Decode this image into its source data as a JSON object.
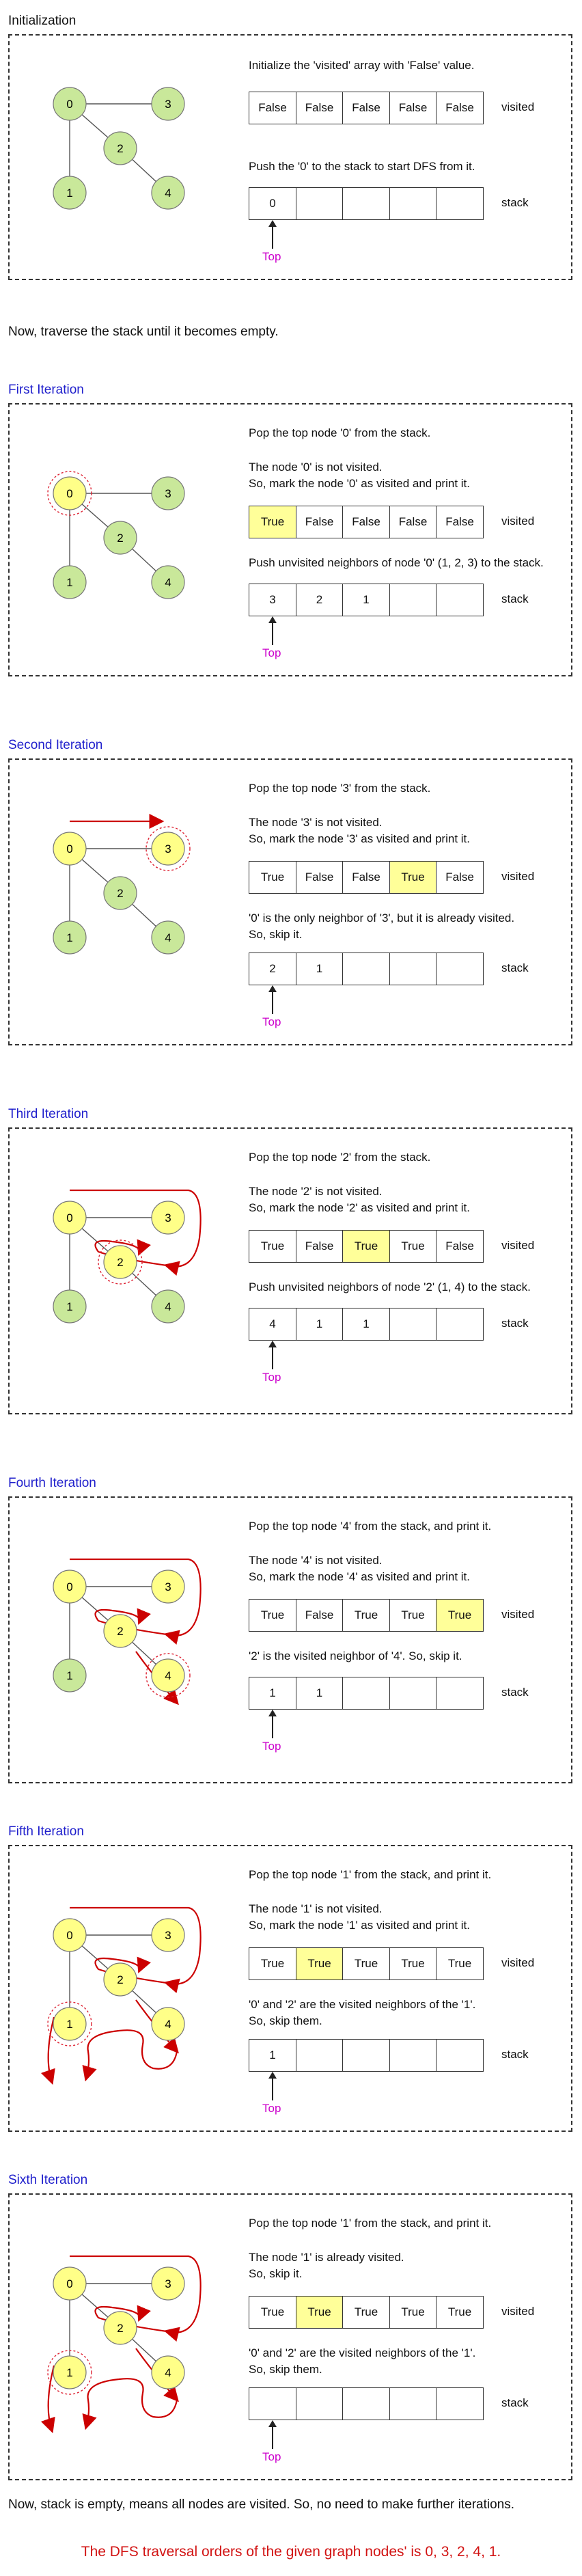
{
  "colors": {
    "unvisited": "#c9e89a",
    "visited": "#ffff88",
    "highlight": "#ffff99",
    "arrow": "#cc0000",
    "top": "#cc00cc",
    "title": "#1f1fcc",
    "final": "#d21414"
  },
  "sections": [
    {
      "title": "Initialization",
      "blue": false,
      "line1": "Initialize the 'visited' array with 'False' value.",
      "line2": "Push the '0' to the stack to start DFS from it."
    },
    {
      "title": "First Iteration",
      "blue": true,
      "line1": "Pop the top node '0' from the stack.",
      "line2": "The node '0' is not visited.\nSo, mark the node '0' as visited and print it.",
      "line3": "Push unvisited neighbors of node '0' (1, 2, 3) to the stack."
    },
    {
      "title": "Second Iteration",
      "blue": true,
      "line1": "Pop the top node '3' from the stack.",
      "line2": "The node '3' is not visited.\nSo, mark the node '3' as visited and print it.",
      "line3": "'0' is the only neighbor of '3', but it is already visited.\nSo, skip it."
    },
    {
      "title": "Third Iteration",
      "blue": true,
      "line1": "Pop the top node '2' from the stack.",
      "line2": "The node '2' is not visited.\nSo, mark the node '2' as visited and print it.",
      "line3": "Push unvisited neighbors of node '2' (1, 4) to the stack."
    },
    {
      "title": "Fourth Iteration",
      "blue": true,
      "line1": "Pop the top node '4' from the stack, and print it.",
      "line2": "The node '4' is not visited.\nSo, mark the node '4' as visited and print it.",
      "line3": "'2' is the visited neighbor of '4'. So, skip it."
    },
    {
      "title": "Fifth Iteration",
      "blue": true,
      "line1": "Pop the top node '1' from the stack, and print it.",
      "line2": "The node '1' is not visited.\nSo, mark the node '1' as visited and print it.",
      "line3": "'0' and '2' are the visited neighbors of the '1'.\nSo, skip them."
    },
    {
      "title": "Sixth Iteration",
      "blue": true,
      "line1": "Pop the top node '1' from the stack, and print it.",
      "line2": "The node '1' is already visited.\nSo, skip it.",
      "line3": "'0' and '2' are the visited neighbors of the '1'.\nSo, skip them."
    }
  ],
  "visited_arrays": [
    [
      "False",
      "False",
      "False",
      "False",
      "False"
    ],
    [
      "True",
      "False",
      "False",
      "False",
      "False"
    ],
    [
      "True",
      "False",
      "False",
      "True",
      "False"
    ],
    [
      "True",
      "False",
      "True",
      "True",
      "False"
    ],
    [
      "True",
      "False",
      "True",
      "True",
      "True"
    ],
    [
      "True",
      "True",
      "True",
      "True",
      "True"
    ],
    [
      "True",
      "True",
      "True",
      "True",
      "True"
    ]
  ],
  "visited_highlight": [
    -1,
    0,
    3,
    2,
    4,
    1,
    1
  ],
  "stacks": [
    [
      "0",
      "",
      "",
      "",
      ""
    ],
    [
      "3",
      "2",
      "1",
      "",
      ""
    ],
    [
      "2",
      "1",
      "",
      "",
      ""
    ],
    [
      "4",
      "1",
      "1",
      "",
      ""
    ],
    [
      "1",
      "1",
      "",
      "",
      ""
    ],
    [
      "1",
      "",
      "",
      "",
      ""
    ],
    [
      "",
      "",
      "",
      "",
      ""
    ]
  ],
  "visited_nodes": [
    [],
    [
      0
    ],
    [
      0,
      3
    ],
    [
      0,
      3,
      2
    ],
    [
      0,
      3,
      2,
      4
    ],
    [
      0,
      3,
      2,
      4,
      1
    ],
    [
      0,
      3,
      2,
      4,
      1
    ]
  ],
  "current_node": [
    -1,
    0,
    3,
    2,
    4,
    1,
    1
  ],
  "node_labels": [
    "0",
    "1",
    "2",
    "3",
    "4"
  ],
  "labels": {
    "visited": "visited",
    "stack": "stack",
    "top": "Top"
  },
  "traverse_note": "Now, traverse the stack until it becomes empty.",
  "empty_note": "Now, stack is empty, means all nodes are visited. So, no need to make further iterations.",
  "final_text": "The DFS traversal orders of the given graph nodes' is 0, 3, 2, 4, 1."
}
